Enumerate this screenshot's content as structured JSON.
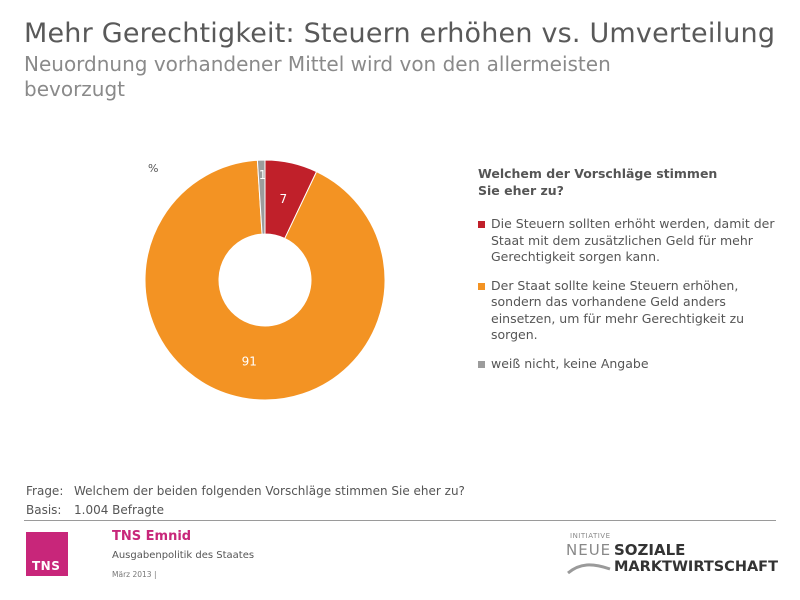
{
  "header": {
    "title": "Mehr Gerechtigkeit: Steuern erhöhen vs. Umverteilung",
    "subtitle": "Neuordnung vorhandener Mittel wird von den allermeisten bevorzugt"
  },
  "chart_data": {
    "type": "pie",
    "unit_label": "%",
    "question": "Welchem der Vorschläge stimmen Sie eher zu?",
    "categories": [
      "Die Steuern sollten erhöht werden, damit der Staat mit dem zusätzlichen Geld für mehr Gerechtigkeit sorgen kann.",
      "Der Staat sollte keine Steuern erhöhen, sondern das vorhandene Geld anders einsetzen, um für mehr Gerechtigkeit zu sorgen.",
      "weiß nicht, keine Angabe"
    ],
    "values": [
      7,
      91,
      1
    ],
    "colors": [
      "#c0202a",
      "#f39323",
      "#9c9c9c"
    ],
    "legend_position": "right"
  },
  "footer": {
    "frage_label": "Frage:",
    "frage_text": "Welchem der beiden folgenden Vorschläge stimmen Sie eher zu?",
    "basis_label": "Basis:",
    "basis_text": "1.004 Befragte",
    "brand": "TNS Emnid",
    "logo_text": "TNS",
    "topic": "Ausgabenpolitik des Staates",
    "date": "März 2013 |",
    "partner_initiative": "INITIATIVE",
    "partner_neue": "NEUE",
    "partner_soziale": "SOZIALE",
    "partner_markt": "MARKTWIRTSCHAFT"
  }
}
